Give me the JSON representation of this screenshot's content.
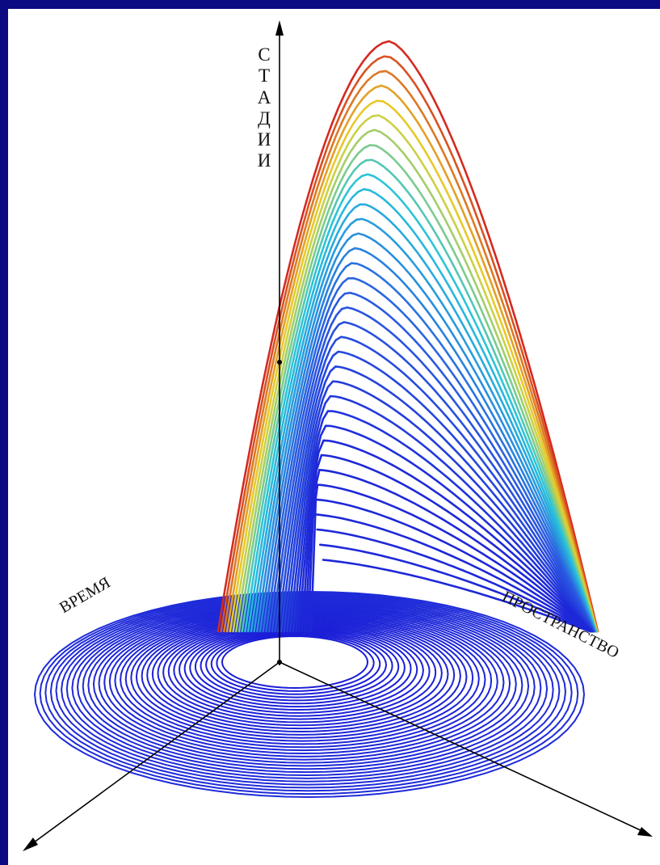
{
  "diagram": {
    "axes": {
      "vertical": {
        "label": "СТАДИИ"
      },
      "left": {
        "label": "ВРЕМЯ"
      },
      "right": {
        "label": "ПРОСТРАНСТВО"
      }
    },
    "colors": {
      "background_border": "#0b0a82",
      "panel": "#ffffff",
      "axis": "#000000",
      "curve_low": "#1a1ad6",
      "curve_mid": "#27c4dc",
      "curve_high_yellow": "#e8d32a",
      "curve_peak": "#d42a20"
    },
    "style": "3D spiral of colored curves rising from a base vortex"
  }
}
